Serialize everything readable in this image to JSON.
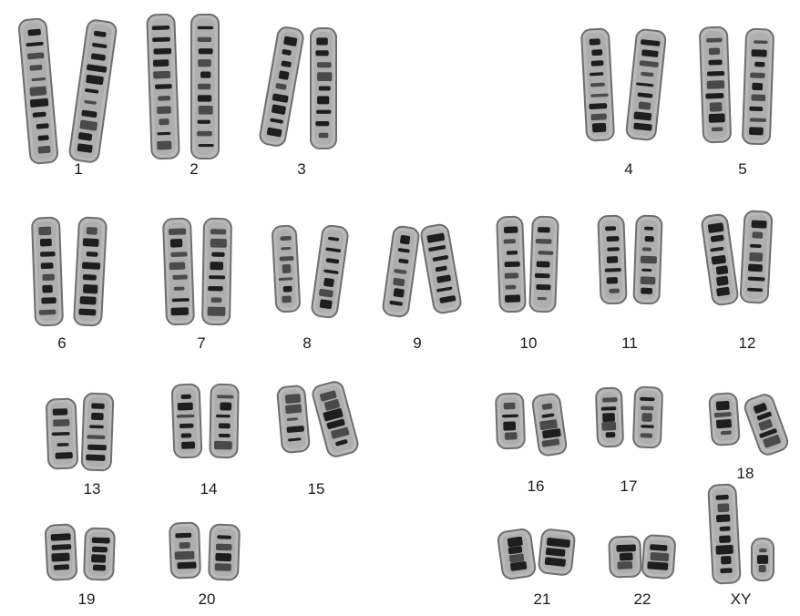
{
  "karyotype": {
    "labels": [
      "1",
      "2",
      "3",
      "4",
      "5",
      "6",
      "7",
      "8",
      "9",
      "10",
      "11",
      "12",
      "13",
      "14",
      "15",
      "16",
      "17",
      "18",
      "19",
      "20",
      "21",
      "22",
      "XY"
    ]
  },
  "colors": {
    "chromatid_fill": "#b9b9b9",
    "chromatid_outline": "#6e6e6e",
    "band_dark": "#1e1e1e",
    "band_mid": "#4a4a4a",
    "label_text": "#1a1a1a",
    "background": "#ffffff"
  }
}
